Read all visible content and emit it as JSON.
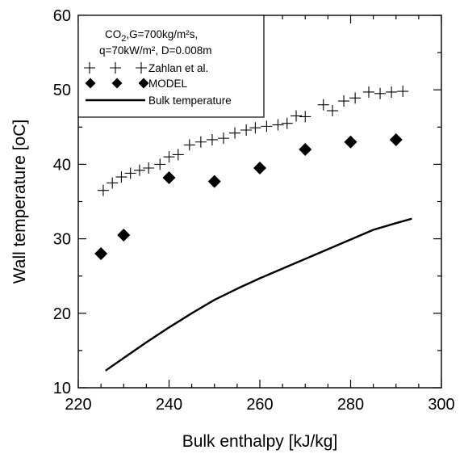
{
  "chart_data": {
    "type": "scatter",
    "title": "",
    "xlabel": "Bulk enthalpy [kJ/kg]",
    "ylabel": "Wall temperature [oC]",
    "xlim": [
      220,
      300
    ],
    "ylim": [
      10,
      60
    ],
    "x_ticks": [
      220,
      240,
      260,
      280,
      300
    ],
    "y_ticks": [
      10,
      20,
      30,
      40,
      50,
      60
    ],
    "x_minor_step": 5,
    "y_minor_step": 5,
    "grid": false,
    "legend_position": "top-left",
    "annotation": {
      "line1_prefix": "CO",
      "line1_sub": "2",
      "line1_suffix": ",G=700kg/m²s,",
      "line2": "q=70kW/m², D=0.008m"
    },
    "series": [
      {
        "name": "Zahlan et al.",
        "marker": "plus",
        "points": [
          [
            225.5,
            36.5
          ],
          [
            227.5,
            37.5
          ],
          [
            229.5,
            38.3
          ],
          [
            231.5,
            38.8
          ],
          [
            233.5,
            39.2
          ],
          [
            235.5,
            39.5
          ],
          [
            238.0,
            40.0
          ],
          [
            240.0,
            41.0
          ],
          [
            242.0,
            41.3
          ],
          [
            244.5,
            42.6
          ],
          [
            247.0,
            43.0
          ],
          [
            249.5,
            43.3
          ],
          [
            252.0,
            43.5
          ],
          [
            254.5,
            44.2
          ],
          [
            257.0,
            44.6
          ],
          [
            259.0,
            44.9
          ],
          [
            261.5,
            45.1
          ],
          [
            264.0,
            45.3
          ],
          [
            266.0,
            45.5
          ],
          [
            268.0,
            46.5
          ],
          [
            270.0,
            46.4
          ],
          [
            274.0,
            48.0
          ],
          [
            276.0,
            47.2
          ],
          [
            278.5,
            48.5
          ],
          [
            281.0,
            48.9
          ],
          [
            284.0,
            49.7
          ],
          [
            286.5,
            49.5
          ],
          [
            289.0,
            49.7
          ],
          [
            291.5,
            49.8
          ]
        ]
      },
      {
        "name": "MODEL",
        "marker": "diamond",
        "points": [
          [
            225.0,
            28.0
          ],
          [
            230.0,
            30.5
          ],
          [
            240.0,
            38.2
          ],
          [
            250.0,
            37.7
          ],
          [
            260.0,
            39.5
          ],
          [
            270.0,
            42.0
          ],
          [
            280.0,
            43.0
          ],
          [
            290.0,
            43.3
          ]
        ]
      },
      {
        "name": "Bulk temperature",
        "marker": "line",
        "points": [
          [
            226,
            12.3
          ],
          [
            230,
            14.0
          ],
          [
            235,
            16.1
          ],
          [
            240,
            18.1
          ],
          [
            245,
            20.0
          ],
          [
            250,
            21.8
          ],
          [
            255,
            23.3
          ],
          [
            260,
            24.7
          ],
          [
            265,
            26.0
          ],
          [
            270,
            27.3
          ],
          [
            275,
            28.6
          ],
          [
            280,
            29.9
          ],
          [
            285,
            31.2
          ],
          [
            290,
            32.1
          ],
          [
            293.5,
            32.7
          ]
        ]
      }
    ],
    "colors": {
      "axis": "#000000",
      "marker": "#000000",
      "line": "#000000"
    }
  }
}
